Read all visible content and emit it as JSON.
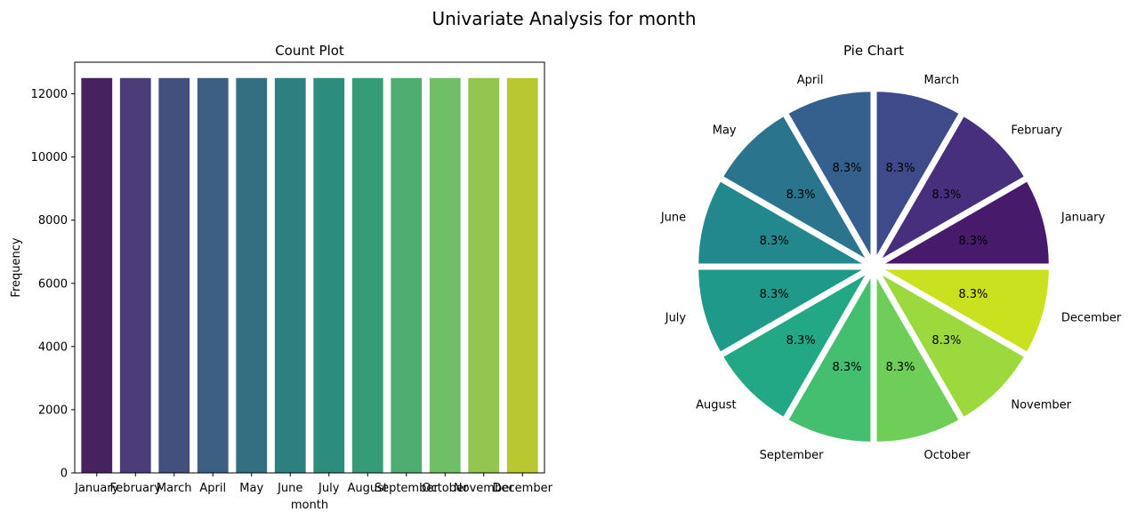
{
  "figure_title": "Univariate Analysis for month",
  "chart_data": [
    {
      "type": "bar",
      "title": "Count Plot",
      "xlabel": "month",
      "ylabel": "Frequency",
      "categories": [
        "January",
        "February",
        "March",
        "April",
        "May",
        "June",
        "July",
        "August",
        "September",
        "October",
        "November",
        "December"
      ],
      "values": [
        12500,
        12500,
        12500,
        12500,
        12500,
        12500,
        12500,
        12500,
        12500,
        12500,
        12500,
        12500
      ],
      "ylim": [
        0,
        13000
      ],
      "yticks": [
        0,
        2000,
        4000,
        6000,
        8000,
        10000,
        12000
      ],
      "colors": [
        "#46225f",
        "#4a3d78",
        "#43507e",
        "#3c5f82",
        "#346f81",
        "#2e7f80",
        "#2d8d7c",
        "#369c77",
        "#4fad72",
        "#6fbf67",
        "#94c551",
        "#b8c72f"
      ],
      "grid": false
    },
    {
      "type": "pie",
      "title": "Pie Chart",
      "categories": [
        "January",
        "February",
        "March",
        "April",
        "May",
        "June",
        "July",
        "August",
        "September",
        "October",
        "November",
        "December"
      ],
      "values": [
        8.3,
        8.3,
        8.3,
        8.3,
        8.3,
        8.3,
        8.3,
        8.3,
        8.3,
        8.3,
        8.3,
        8.3
      ],
      "value_labels": [
        "8.3%",
        "8.3%",
        "8.3%",
        "8.3%",
        "8.3%",
        "8.3%",
        "8.3%",
        "8.3%",
        "8.3%",
        "8.3%",
        "8.3%",
        "8.3%"
      ],
      "colors": [
        "#481a6c",
        "#472f7d",
        "#3e4a89",
        "#35608d",
        "#2b748e",
        "#23888e",
        "#1f998a",
        "#22a884",
        "#44bf70",
        "#6ece58",
        "#9bd93c",
        "#cae11f"
      ]
    }
  ]
}
